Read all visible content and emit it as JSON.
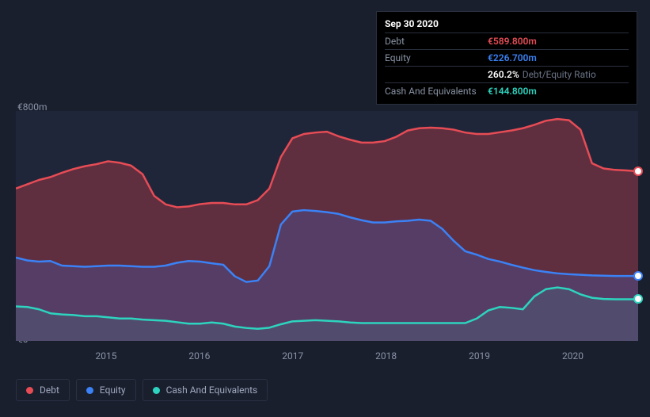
{
  "chart": {
    "type": "area",
    "background_color": "#1a1f2e",
    "plot_bg_color": "#20263a",
    "y_axis": {
      "min": 0,
      "max": 800,
      "labels": [
        {
          "value": 800,
          "text": "€800m",
          "y": 128
        },
        {
          "value": 0,
          "text": "€0",
          "y": 421
        }
      ],
      "label_color": "#8a94a6"
    },
    "x_axis": {
      "ticks": [
        {
          "label": "2015",
          "pos": 0.145
        },
        {
          "label": "2016",
          "pos": 0.295
        },
        {
          "label": "2017",
          "pos": 0.445
        },
        {
          "label": "2018",
          "pos": 0.595
        },
        {
          "label": "2019",
          "pos": 0.745
        },
        {
          "label": "2020",
          "pos": 0.895
        }
      ],
      "label_color": "#8a94a6"
    },
    "series": [
      {
        "name": "Debt",
        "color": "#e74c55",
        "fill_color": "rgba(200,60,70,0.38)",
        "line_width": 2.5,
        "data": [
          530,
          545,
          560,
          570,
          585,
          598,
          608,
          615,
          625,
          620,
          610,
          580,
          505,
          475,
          465,
          468,
          476,
          480,
          480,
          475,
          475,
          490,
          530,
          640,
          705,
          720,
          725,
          728,
          712,
          700,
          690,
          690,
          695,
          710,
          732,
          740,
          742,
          740,
          735,
          725,
          720,
          720,
          726,
          732,
          740,
          752,
          766,
          772,
          768,
          735,
          618,
          600,
          595,
          593,
          590
        ]
      },
      {
        "name": "Equity",
        "color": "#3b82f6",
        "fill_color": "rgba(60,100,200,0.28)",
        "line_width": 2.5,
        "data": [
          290,
          280,
          276,
          278,
          262,
          260,
          258,
          260,
          262,
          262,
          260,
          258,
          258,
          262,
          272,
          278,
          276,
          270,
          265,
          225,
          205,
          210,
          260,
          405,
          450,
          455,
          452,
          448,
          442,
          430,
          420,
          412,
          412,
          416,
          418,
          422,
          418,
          390,
          348,
          312,
          300,
          285,
          276,
          265,
          255,
          246,
          240,
          235,
          232,
          230,
          228,
          227,
          226,
          226,
          226
        ]
      },
      {
        "name": "Cash And Equivalents",
        "color": "#2dd4bf",
        "fill_color": "rgba(45,212,191,0.10)",
        "line_width": 2.5,
        "data": [
          120,
          118,
          110,
          96,
          92,
          90,
          86,
          86,
          82,
          78,
          78,
          74,
          72,
          70,
          65,
          60,
          60,
          64,
          60,
          50,
          45,
          42,
          46,
          58,
          68,
          70,
          72,
          70,
          68,
          64,
          62,
          62,
          62,
          62,
          62,
          62,
          62,
          62,
          62,
          62,
          78,
          106,
          118,
          115,
          110,
          155,
          180,
          186,
          180,
          162,
          150,
          146,
          145,
          145,
          145
        ]
      }
    ],
    "markers": [
      {
        "series": "Debt",
        "x": 1.0,
        "value": 590,
        "color": "#e74c55"
      },
      {
        "series": "Equity",
        "x": 1.0,
        "value": 226,
        "color": "#3b82f6"
      },
      {
        "series": "Cash",
        "x": 1.0,
        "value": 145,
        "color": "#2dd4bf"
      }
    ],
    "tooltip": {
      "title": "Sep 30 2020",
      "rows": [
        {
          "label": "Debt",
          "value": "€589.800m",
          "color": "#e74c55"
        },
        {
          "label": "Equity",
          "value": "€226.700m",
          "color": "#3b82f6"
        },
        {
          "label": "",
          "value": "260.2%",
          "secondary": "Debt/Equity Ratio",
          "color": "#ffffff"
        },
        {
          "label": "Cash And Equivalents",
          "value": "€144.800m",
          "color": "#2dd4bf"
        }
      ]
    },
    "legend": [
      {
        "label": "Debt",
        "color": "#e74c55"
      },
      {
        "label": "Equity",
        "color": "#3b82f6"
      },
      {
        "label": "Cash And Equivalents",
        "color": "#2dd4bf"
      }
    ]
  }
}
